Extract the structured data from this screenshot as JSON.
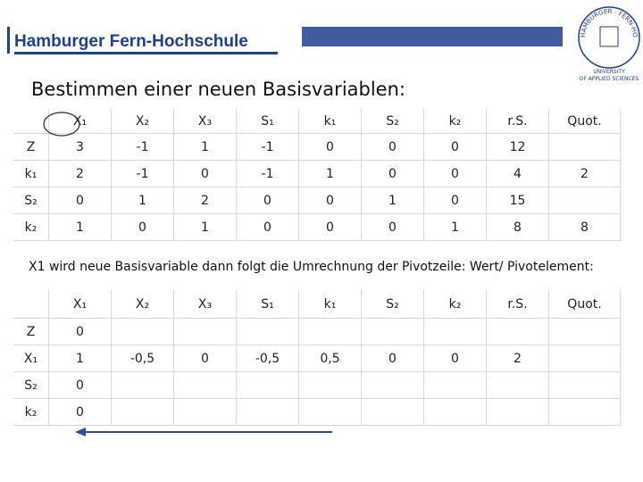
{
  "header": {
    "brand": "Hamburger Fern-Hochschule",
    "seal_ring": "HAMBURGER · FERN-HOCHSCHULE · HFH ·",
    "seal_line1": "UNIVERSITY",
    "seal_line2": "OF APPLIED SCIENCES"
  },
  "title": "Bestimmen einer neuen Basisvariablen:",
  "table1": {
    "columns": [
      "X₁",
      "X₂",
      "X₃",
      "S₁",
      "k₁",
      "S₂",
      "k₂",
      "r.S.",
      "Quot."
    ],
    "rows": [
      {
        "label": "Z",
        "cells": [
          "3",
          "-1",
          "1",
          "-1",
          "0",
          "0",
          "0",
          "12",
          null
        ]
      },
      {
        "label": "k₁",
        "cells": [
          "2",
          "-1",
          "0",
          "-1",
          "1",
          "0",
          "0",
          "4",
          "2"
        ]
      },
      {
        "label": "S₂",
        "cells": [
          "0",
          "1",
          "2",
          "0",
          "0",
          "1",
          "0",
          "15",
          null
        ]
      },
      {
        "label": "k₂",
        "cells": [
          "1",
          "0",
          "1",
          "0",
          "0",
          "0",
          "1",
          "8",
          "8"
        ]
      }
    ]
  },
  "note": "X1 wird neue Basisvariable dann folgt die Umrechnung der Pivotzeile: Wert/ Pivotelement:",
  "table2": {
    "columns": [
      "X₁",
      "X₂",
      "X₃",
      "S₁",
      "k₁",
      "S₂",
      "k₂",
      "r.S.",
      "Quot."
    ],
    "rows": [
      {
        "label": "Z",
        "cells": [
          "0",
          null,
          null,
          null,
          null,
          null,
          null,
          null,
          null
        ]
      },
      {
        "label": "X₁",
        "cells": [
          "1",
          "-0,5",
          "0",
          "-0,5",
          "0,5",
          "0",
          "0",
          "2",
          null
        ]
      },
      {
        "label": "S₂",
        "cells": [
          "0",
          null,
          null,
          null,
          null,
          null,
          null,
          null,
          null
        ]
      },
      {
        "label": "k₂",
        "cells": [
          "0",
          null,
          null,
          null,
          null,
          null,
          null,
          null,
          null
        ]
      }
    ]
  }
}
